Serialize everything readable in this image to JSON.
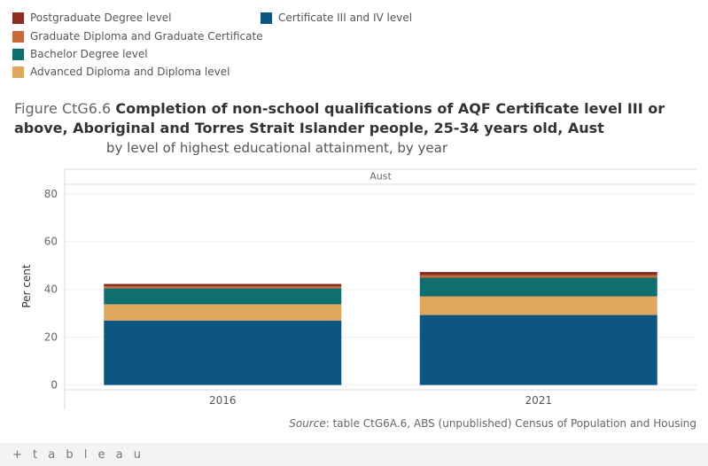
{
  "legend": [
    {
      "label": "Postgraduate Degree level",
      "color": "#8b2e22"
    },
    {
      "label": "Graduate Diploma and Graduate Certificate",
      "color": "#c8693a"
    },
    {
      "label": "Bachelor Degree level",
      "color": "#0f6e6e"
    },
    {
      "label": "Advanced Diploma and Diploma level",
      "color": "#e0a65e"
    },
    {
      "label": "Certificate III and IV level",
      "color": "#0d5682"
    }
  ],
  "title": {
    "prefix": "Figure CtG6.6",
    "main": "Completion of non-school qualifications of AQF Certificate level III or above, Aboriginal and Torres Strait Islander people, 25-34 years old, Aust",
    "subtitle": "by level of highest educational attainment, by year"
  },
  "source": {
    "label": "Source",
    "text": ": table CtG6A.6, ABS (unpublished) Census of Population and Housing"
  },
  "footer": {
    "brand": "+ t a b l e a u"
  },
  "chart_data": {
    "type": "bar",
    "stacked": true,
    "panel_label": "Aust",
    "ylabel": "Per cent",
    "ylim": [
      -2,
      84
    ],
    "yticks": [
      0,
      20,
      40,
      60,
      80
    ],
    "categories": [
      "2016",
      "2021"
    ],
    "series": [
      {
        "name": "Certificate III and IV level",
        "values": [
          27.0,
          29.3
        ]
      },
      {
        "name": "Advanced Diploma and Diploma level",
        "values": [
          6.8,
          7.8
        ]
      },
      {
        "name": "Bachelor Degree level",
        "values": [
          6.7,
          7.8
        ]
      },
      {
        "name": "Graduate Diploma and Graduate Certificate",
        "values": [
          0.8,
          1.0
        ]
      },
      {
        "name": "Postgraduate Degree level",
        "values": [
          1.0,
          1.4
        ]
      }
    ]
  }
}
